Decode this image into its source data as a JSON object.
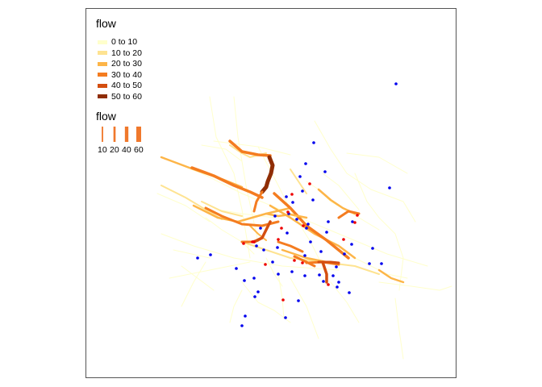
{
  "legend_color": {
    "title": "flow",
    "items": [
      {
        "label": "0 to 10",
        "color": "#ffffcc"
      },
      {
        "label": "10 to 20",
        "color": "#fee391"
      },
      {
        "label": "20 to 30",
        "color": "#fdb548"
      },
      {
        "label": "30 to 40",
        "color": "#f47c20"
      },
      {
        "label": "40 to 50",
        "color": "#d44e10"
      },
      {
        "label": "50 to 60",
        "color": "#8f2d04"
      }
    ]
  },
  "legend_width": {
    "title": "flow",
    "color": "#f0782c",
    "items": [
      {
        "label": "10",
        "value": 10
      },
      {
        "label": "20",
        "value": 20
      },
      {
        "label": "40",
        "value": 40
      },
      {
        "label": "60",
        "value": 60
      }
    ]
  },
  "point_colors": {
    "station": "#0000ee",
    "origin": "#ee0000"
  }
}
